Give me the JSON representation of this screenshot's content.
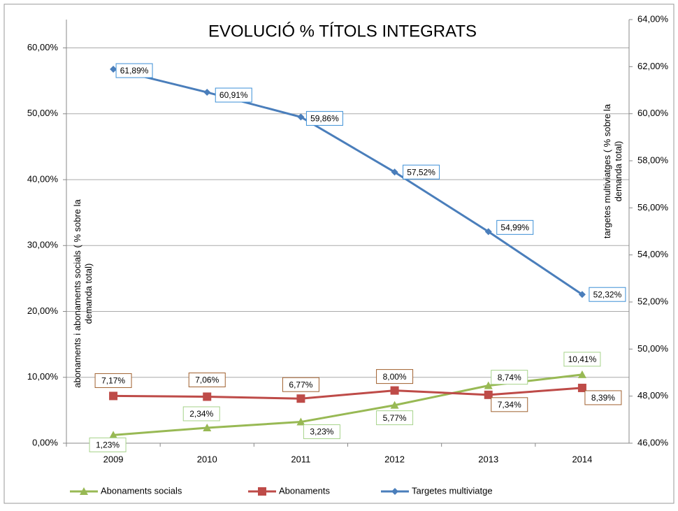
{
  "chart_data": {
    "type": "line",
    "title": "EVOLUCIÓ % TÍTOLS INTEGRATS",
    "y_label": "abonaments i abonaments socials ( % sobre la demanda total)",
    "y2_label": "targetes multiviatges ( % sobre la demanda total)",
    "categories": [
      "2009",
      "2010",
      "2011",
      "2012",
      "2013",
      "2014"
    ],
    "series": [
      {
        "name": "Abonaments socials",
        "color": "#98b954",
        "marker": "triangle",
        "values": [
          1.23,
          2.34,
          3.23,
          5.77,
          8.74,
          10.41
        ],
        "value_labels": [
          "1,23%",
          "2,34%",
          "3,23%",
          "5,77%",
          "8,74%",
          "10,41%"
        ]
      },
      {
        "name": "Abonaments",
        "color": "#be4b48",
        "marker": "square",
        "values": [
          7.17,
          7.06,
          6.77,
          8.0,
          7.34,
          8.39
        ],
        "value_labels": [
          "7,17%",
          "7,06%",
          "6,77%",
          "8,00%",
          "7,34%",
          "8,39%"
        ]
      },
      {
        "name": "Targetes multiviatge",
        "color": "#4a7ebb",
        "marker": "diamond",
        "axis": "y2",
        "values": [
          61.89,
          60.91,
          59.86,
          57.52,
          54.99,
          52.32
        ],
        "value_labels": [
          "61,89%",
          "60,91%",
          "59,86%",
          "57,52%",
          "54,99%",
          "52,32%"
        ]
      }
    ],
    "ylim": [
      0,
      64.3
    ],
    "yticks": [
      {
        "value": 0,
        "label": "0,00%"
      },
      {
        "value": 10,
        "label": "10,00%"
      },
      {
        "value": 20,
        "label": "20,00%"
      },
      {
        "value": 30,
        "label": "30,00%"
      },
      {
        "value": 40,
        "label": "40,00%"
      },
      {
        "value": 50,
        "label": "50,00%"
      },
      {
        "value": 60,
        "label": "60,00%"
      }
    ],
    "y2lim": [
      46,
      64
    ],
    "y2ticks": [
      {
        "value": 46,
        "label": "46,00%"
      },
      {
        "value": 48,
        "label": "48,00%"
      },
      {
        "value": 50,
        "label": "50,00%"
      },
      {
        "value": 52,
        "label": "52,00%"
      },
      {
        "value": 54,
        "label": "54,00%"
      },
      {
        "value": 56,
        "label": "56,00%"
      },
      {
        "value": 58,
        "label": "58,00%"
      },
      {
        "value": 60,
        "label": "60,00%"
      },
      {
        "value": 62,
        "label": "62,00%"
      },
      {
        "value": 64,
        "label": "64,00%"
      }
    ],
    "grid": true,
    "legend": "bottom"
  }
}
